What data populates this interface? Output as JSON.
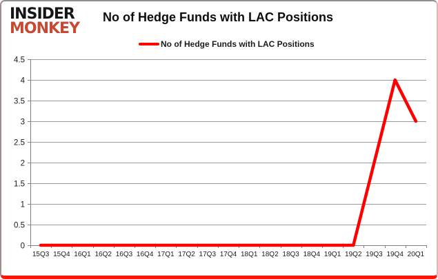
{
  "logo": {
    "line1": "INSIDER",
    "line2": "MONKEY"
  },
  "chart_data": {
    "type": "line",
    "title": "No of Hedge Funds with LAC Positions",
    "xlabel": "",
    "ylabel": "",
    "categories": [
      "15Q3",
      "15Q4",
      "16Q1",
      "16Q2",
      "16Q3",
      "16Q4",
      "17Q1",
      "17Q2",
      "17Q3",
      "17Q4",
      "18Q1",
      "18Q2",
      "18Q3",
      "18Q4",
      "19Q1",
      "19Q2",
      "19Q3",
      "19Q4",
      "20Q1"
    ],
    "series": [
      {
        "name": "No of Hedge Funds with LAC Positions",
        "color": "#ff0000",
        "values": [
          0,
          0,
          0,
          0,
          0,
          0,
          0,
          0,
          0,
          0,
          0,
          0,
          0,
          0,
          0,
          0,
          2,
          4,
          3
        ]
      }
    ],
    "ylim": [
      0,
      4.5
    ],
    "ytick_step": 0.5,
    "grid": true,
    "legend_position": "top-center"
  },
  "colors": {
    "series_line": "#ff0000",
    "gridline": "#9a9a9a",
    "axis": "#7f7f7f",
    "logo_insider": "#161616",
    "logo_monkey": "#c64a33",
    "frame_bottom": "#fb1408"
  }
}
